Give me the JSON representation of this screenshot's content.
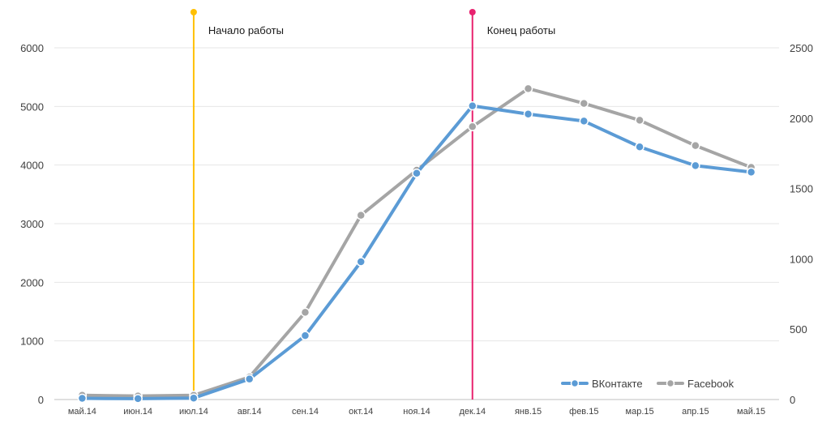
{
  "chart_data": {
    "type": "line",
    "categories": [
      "май.14",
      "июн.14",
      "июл.14",
      "авг.14",
      "сен.14",
      "окт.14",
      "ноя.14",
      "дек.14",
      "янв.15",
      "фев.15",
      "мар.15",
      "апр.15",
      "май.15"
    ],
    "series": [
      {
        "name": "ВКонтакте",
        "axis": "left",
        "color": "#5b9bd5",
        "values": [
          20,
          15,
          25,
          350,
          1090,
          2350,
          3860,
          5010,
          4870,
          4750,
          4310,
          3990,
          3880
        ]
      },
      {
        "name": "Facebook",
        "axis": "right",
        "color": "#a5a5a5",
        "values": [
          30,
          25,
          30,
          160,
          620,
          1310,
          1630,
          1940,
          2210,
          2105,
          1985,
          1805,
          1650
        ]
      }
    ],
    "y_left": {
      "range": [
        0,
        6000
      ],
      "ticks": [
        "0",
        "1000",
        "2000",
        "3000",
        "4000",
        "5000",
        "6000"
      ]
    },
    "y_right": {
      "range": [
        0,
        2500
      ],
      "ticks": [
        "0",
        "500",
        "1000",
        "1500",
        "2000",
        "2500"
      ]
    },
    "grid": "horizontal",
    "legend": "bottom-right",
    "annotations": [
      {
        "label": "Начало работы",
        "at": "июл.14",
        "color": "#ffc000"
      },
      {
        "label": "Конец работы",
        "at": "дек.14",
        "color": "#e8226f"
      }
    ]
  }
}
